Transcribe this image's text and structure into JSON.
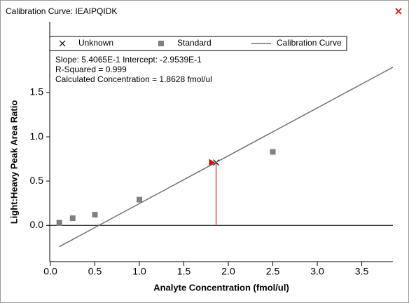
{
  "window": {
    "title": "Calibration Curve: IEAIPQIDK"
  },
  "chart_data": {
    "type": "scatter",
    "x_label": "Analyte Concentration (fmol/ul)",
    "y_label": "Light:Heavy Peak Area Ratio",
    "annotations": [
      "Slope: 5.4065E-1 Intercept: -2.9539E-1",
      "R-Squared = 0.999",
      "Calculated Concentration = 1.8628 fmol/ul"
    ],
    "xlim": [
      0,
      3.85
    ],
    "ylim": [
      -0.41,
      2.3
    ],
    "xticks": [
      {
        "value": 0,
        "label": "0.0"
      },
      0.5,
      {
        "value": 1,
        "label": "1.0"
      },
      1.5,
      {
        "value": 2,
        "label": "2.0"
      },
      2.5,
      {
        "value": 3,
        "label": "3.0"
      },
      3.5
    ],
    "yticks": [
      {
        "value": 0,
        "label": "0.0"
      },
      0.5,
      {
        "value": 1,
        "label": "1.0"
      },
      1.5
    ],
    "series": [
      {
        "name": "Unknown",
        "color": "#000000",
        "marker": "x",
        "x": [
          1.8628
        ],
        "values": [
          0.71
        ]
      },
      {
        "name": "Standard",
        "color": "#808080",
        "marker": "square",
        "x": [
          0.1,
          0.25,
          0.5,
          1.0,
          2.5
        ],
        "values": [
          0.03,
          0.08,
          0.12,
          0.29,
          0.83
        ]
      },
      {
        "name": "Calibration Curve",
        "color": "#707070",
        "marker": "line",
        "x": [
          0.1,
          3.85
        ],
        "values": [
          -0.241,
          1.786
        ]
      }
    ]
  }
}
